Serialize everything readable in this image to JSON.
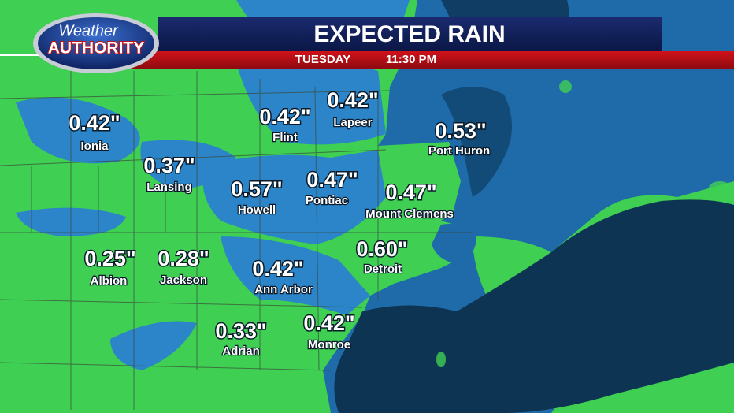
{
  "header": {
    "logo_top": "Weather",
    "logo_bottom": "AUTHORITY",
    "title": "EXPECTED RAIN",
    "day": "TUESDAY",
    "time": "11:30 PM"
  },
  "locations": [
    {
      "amount": "0.42\"",
      "name": "Ionia"
    },
    {
      "amount": "0.37\"",
      "name": "Lansing"
    },
    {
      "amount": "0.42\"",
      "name": "Flint"
    },
    {
      "amount": "0.42\"",
      "name": "Lapeer"
    },
    {
      "amount": "0.53\"",
      "name": "Port Huron"
    },
    {
      "amount": "0.57\"",
      "name": "Howell"
    },
    {
      "amount": "0.47\"",
      "name": "Pontiac"
    },
    {
      "amount": "0.47\"",
      "name": "Mount Clemens"
    },
    {
      "amount": "0.25\"",
      "name": "Albion"
    },
    {
      "amount": "0.28\"",
      "name": "Jackson"
    },
    {
      "amount": "0.42\"",
      "name": "Ann Arbor"
    },
    {
      "amount": "0.60\"",
      "name": "Detroit"
    },
    {
      "amount": "0.33\"",
      "name": "Adrian"
    },
    {
      "amount": "0.42\"",
      "name": "Monroe"
    }
  ]
}
